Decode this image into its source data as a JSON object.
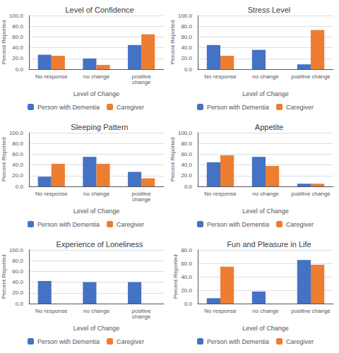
{
  "chart_data": [
    {
      "type": "bar",
      "title": "Level of Confidence",
      "categories": [
        "No response",
        "no change",
        "positive\nchange"
      ],
      "series": [
        {
          "name": "Person with Dementia",
          "color": "#4472C4",
          "values": [
            27,
            20,
            45
          ]
        },
        {
          "name": "Caregiver",
          "color": "#ED7D31",
          "values": [
            25,
            8,
            65
          ]
        }
      ],
      "xlabel": "Level of Change",
      "ylabel": "Percent Reported",
      "ylim": [
        0,
        100
      ],
      "yticks": [
        {
          "value": 0,
          "label": "0.0"
        },
        {
          "value": 20,
          "label": "20.0"
        },
        {
          "value": 40,
          "label": "40.0"
        },
        {
          "value": 60,
          "label": "60.0"
        },
        {
          "value": 80,
          "label": "80.0"
        },
        {
          "value": 100,
          "label": "100.0"
        }
      ],
      "grid": true,
      "legend": "bottom"
    },
    {
      "type": "bar",
      "title": "Stress Level",
      "categories": [
        "No response",
        "no change",
        "positive change"
      ],
      "series": [
        {
          "name": "Person with Dementia",
          "color": "#4472C4",
          "values": [
            45,
            36,
            9
          ]
        },
        {
          "name": "Caregiver",
          "color": "#ED7D31",
          "values": [
            25,
            0,
            73
          ]
        }
      ],
      "xlabel": "Level of Change",
      "ylabel": "Percent Reported",
      "ylim": [
        0,
        100
      ],
      "yticks": [
        {
          "value": 0,
          "label": "0.0"
        },
        {
          "value": 20,
          "label": "20.0"
        },
        {
          "value": 40,
          "label": "40.0"
        },
        {
          "value": 60,
          "label": "60.0"
        },
        {
          "value": 80,
          "label": "80.0"
        },
        {
          "value": 100,
          "label": "100.0"
        }
      ],
      "grid": true,
      "legend": "bottom"
    },
    {
      "type": "bar",
      "title": "Sleeping Pattern",
      "categories": [
        "No response",
        "no change",
        "positive\nchange"
      ],
      "series": [
        {
          "name": "Person with Dementia",
          "color": "#4472C4",
          "values": [
            18,
            55,
            27
          ]
        },
        {
          "name": "Caregiver",
          "color": "#ED7D31",
          "values": [
            42,
            42,
            15
          ]
        }
      ],
      "xlabel": "Level of Change",
      "ylabel": "Percent Reported",
      "ylim": [
        0,
        100
      ],
      "yticks": [
        {
          "value": 0,
          "label": "0.0"
        },
        {
          "value": 20,
          "label": "20.0"
        },
        {
          "value": 40,
          "label": "40.0"
        },
        {
          "value": 60,
          "label": "60.0"
        },
        {
          "value": 80,
          "label": "80.0"
        },
        {
          "value": 100,
          "label": "100.0"
        }
      ],
      "grid": true,
      "legend": "bottom"
    },
    {
      "type": "bar",
      "title": "Appetite",
      "categories": [
        "No response",
        "no change",
        "positive change"
      ],
      "series": [
        {
          "name": "Person with Dementia",
          "color": "#4472C4",
          "values": [
            45,
            55,
            5
          ]
        },
        {
          "name": "Caregiver",
          "color": "#ED7D31",
          "values": [
            58,
            38,
            5
          ]
        }
      ],
      "xlabel": "Level of Change",
      "ylabel": "Percent Reported",
      "ylim": [
        0,
        100
      ],
      "yticks": [
        {
          "value": 0,
          "label": "0.0"
        },
        {
          "value": 20,
          "label": "20.0"
        },
        {
          "value": 40,
          "label": "40.0"
        },
        {
          "value": 60,
          "label": "60.0"
        },
        {
          "value": 80,
          "label": "80.0"
        },
        {
          "value": 100,
          "label": "100.0"
        }
      ],
      "grid": true,
      "legend": "bottom"
    },
    {
      "type": "bar",
      "title": "Experience of Loneliness",
      "categories": [
        "No response",
        "no change",
        "positive\nchange"
      ],
      "series": [
        {
          "name": "Person with Dementia",
          "color": "#4472C4",
          "values": [
            42,
            40,
            40
          ]
        },
        {
          "name": "Caregiver",
          "color": "#ED7D31",
          "values": [
            0,
            0,
            0
          ]
        }
      ],
      "xlabel": "Level of Change",
      "ylabel": "Percent Reported",
      "ylim": [
        0,
        100
      ],
      "yticks": [
        {
          "value": 0,
          "label": "0.0"
        },
        {
          "value": 20,
          "label": "20.0"
        },
        {
          "value": 40,
          "label": "40.0"
        },
        {
          "value": 60,
          "label": "60.0"
        },
        {
          "value": 80,
          "label": "80.0"
        },
        {
          "value": 100,
          "label": "100.0"
        }
      ],
      "grid": true,
      "legend": "bottom"
    },
    {
      "type": "bar",
      "title": "Fun and Pleasure in Life",
      "categories": [
        "No response",
        "no change",
        "positive change"
      ],
      "series": [
        {
          "name": "Person with Dementia",
          "color": "#4472C4",
          "values": [
            8,
            18,
            65
          ]
        },
        {
          "name": "Caregiver",
          "color": "#ED7D31",
          "values": [
            55,
            0,
            58
          ]
        }
      ],
      "xlabel": "Level of Change",
      "ylabel": "Percent Reported",
      "ylim": [
        0,
        80
      ],
      "yticks": [
        {
          "value": 0,
          "label": "0.0"
        },
        {
          "value": 20,
          "label": "20.0"
        },
        {
          "value": 40,
          "label": "40.0"
        },
        {
          "value": 60,
          "label": "60.0"
        },
        {
          "value": 80,
          "label": "80.0"
        }
      ],
      "grid": true,
      "legend": "bottom"
    }
  ]
}
